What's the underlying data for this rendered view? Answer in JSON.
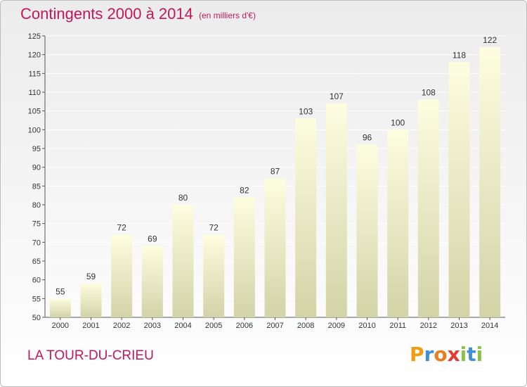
{
  "header": {
    "title": "Contingents 2000 à 2014",
    "subtitle": "(en milliers d'€)"
  },
  "footer": {
    "location": "LA TOUR-DU-CRIEU",
    "logo": "Proxiti"
  },
  "colors": {
    "title": "#c2185b",
    "bar_top": "#fdfde0",
    "bar_bottom": "#d3d3a8",
    "logo_letters": [
      "#f39c12",
      "#3f8fd2",
      "#e67e22",
      "#e53935",
      "#8bc34a",
      "#3f8fd2",
      "#8bc34a"
    ]
  },
  "chart_data": {
    "type": "bar",
    "title": "Contingents 2000 à 2014",
    "subtitle": "(en milliers d'€)",
    "categories": [
      "2000",
      "2001",
      "2002",
      "2003",
      "2004",
      "2005",
      "2006",
      "2007",
      "2008",
      "2009",
      "2010",
      "2011",
      "2012",
      "2013",
      "2014"
    ],
    "values": [
      55,
      59,
      72,
      69,
      80,
      72,
      82,
      87,
      103,
      107,
      96,
      100,
      108,
      118,
      122
    ],
    "ylim": [
      50,
      125
    ],
    "yticks": [
      50,
      55,
      60,
      65,
      70,
      75,
      80,
      85,
      90,
      95,
      100,
      105,
      110,
      115,
      120,
      125
    ],
    "grid": true,
    "data_labels": true
  }
}
